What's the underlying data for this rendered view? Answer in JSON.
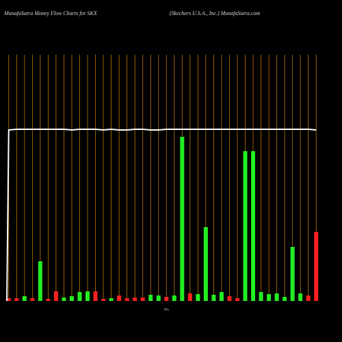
{
  "chart_data": {
    "type": "bar",
    "title": "MunafaSutra  Money Flow  Charts for SKX",
    "subtitle": "(Skechers U.S.A., Inc.) MunafaSutra.com",
    "zero_label": "0%",
    "categories": [
      null,
      null,
      null,
      null,
      null,
      null,
      null,
      null,
      null,
      null,
      null,
      null,
      null,
      null,
      null,
      null,
      null,
      null,
      null,
      null,
      null,
      null,
      null,
      null,
      null,
      null,
      null,
      null,
      null,
      null,
      null,
      null,
      null,
      null,
      null,
      null,
      null,
      null,
      null,
      null
    ],
    "values": [
      4,
      4,
      7,
      4,
      58,
      3,
      14,
      5,
      7,
      13,
      14,
      14,
      3,
      4,
      8,
      4,
      5,
      5,
      9,
      8,
      6,
      8,
      240,
      11,
      10,
      108,
      9,
      13,
      7,
      4,
      219,
      219,
      13,
      10,
      11,
      6,
      79,
      11,
      8,
      101
    ],
    "colors": [
      "#ff2020",
      "#ff2020",
      "#22ee22",
      "#ff2020",
      "#22ee22",
      "#ff2020",
      "#ff2020",
      "#22ee22",
      "#22ee22",
      "#22ee22",
      "#22ee22",
      "#ff2020",
      "#ff2020",
      "#22ee22",
      "#ff2020",
      "#ff2020",
      "#ff2020",
      "#ff2020",
      "#22ee22",
      "#22ee22",
      "#ff2020",
      "#22ee22",
      "#22ee22",
      "#ff2020",
      "#22ee22",
      "#22ee22",
      "#22ee22",
      "#22ee22",
      "#ff2020",
      "#ff2020",
      "#22ee22",
      "#22ee22",
      "#22ee22",
      "#22ee22",
      "#22ee22",
      "#22ee22",
      "#22ee22",
      "#22ee22",
      "#ff2020",
      "#ff2020"
    ],
    "line": {
      "color": "#ffffff",
      "values": [
        250,
        251,
        251,
        251,
        251,
        251,
        251,
        251,
        250,
        251,
        251,
        251,
        250,
        251,
        250,
        250,
        251,
        251,
        250,
        250,
        251,
        251,
        251,
        251,
        251,
        251,
        251,
        251,
        251,
        251,
        251,
        251,
        251,
        251,
        251,
        251,
        251,
        251,
        251,
        250
      ]
    },
    "grid_color": "#c07800",
    "ylim": [
      0,
      360
    ]
  }
}
